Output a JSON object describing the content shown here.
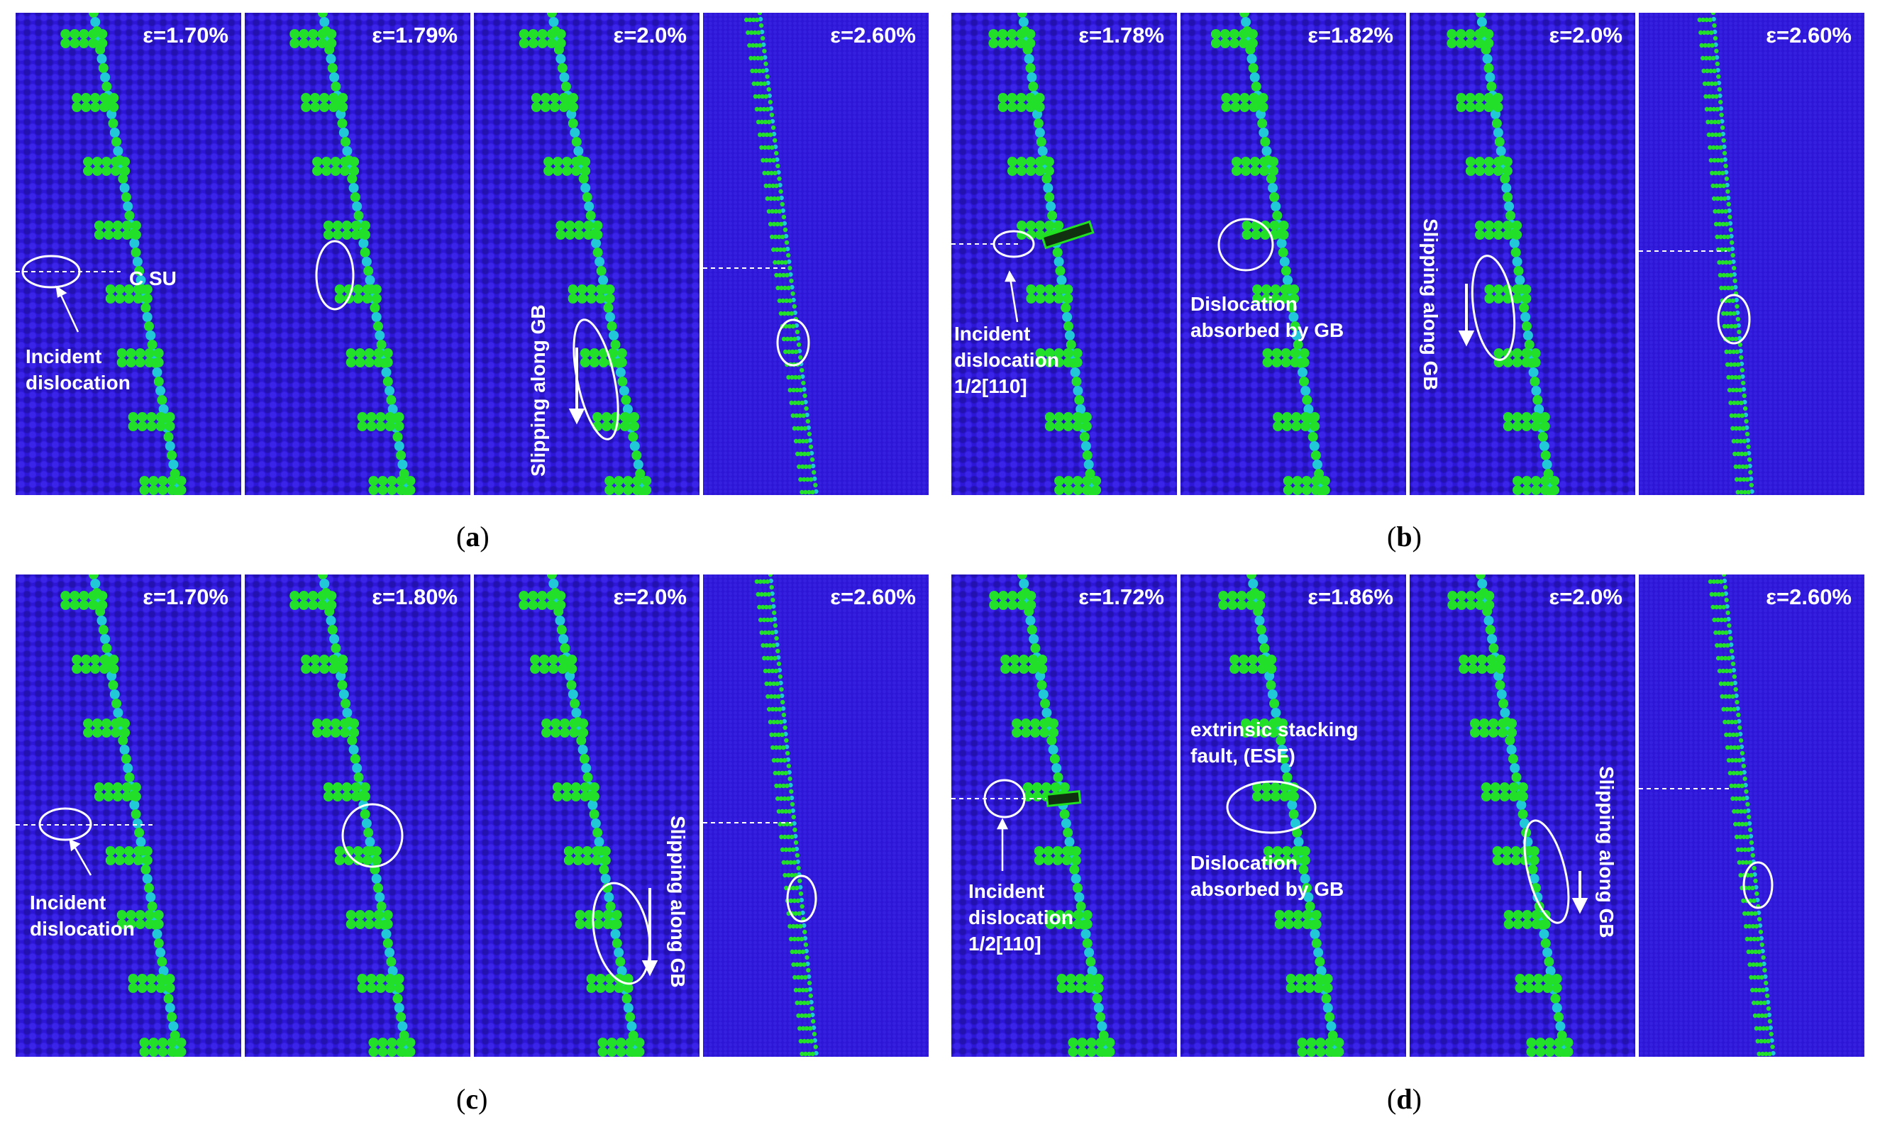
{
  "panels": {
    "a": {
      "label": "a",
      "frames": [
        {
          "strain": "ε=1.70%",
          "annot": "C SU",
          "callout": "Incident\ndislocation"
        },
        {
          "strain": "ε=1.79%"
        },
        {
          "strain": "ε=2.0%",
          "slip": "Slipping along GB"
        },
        {
          "strain": "ε=2.60%"
        }
      ]
    },
    "b": {
      "label": "b",
      "frames": [
        {
          "strain": "ε=1.78%",
          "callout": "Incident\ndislocation\n1/2[110]"
        },
        {
          "strain": "ε=1.82%",
          "callout": "Dislocation\nabsorbed by GB"
        },
        {
          "strain": "ε=2.0%",
          "slip": "Slipping along GB"
        },
        {
          "strain": "ε=2.60%"
        }
      ]
    },
    "c": {
      "label": "c",
      "frames": [
        {
          "strain": "ε=1.70%",
          "callout": "Incident\ndislocation"
        },
        {
          "strain": "ε=1.80%"
        },
        {
          "strain": "ε=2.0%",
          "slip": "Slipping along GB"
        },
        {
          "strain": "ε=2.60%"
        }
      ]
    },
    "d": {
      "label": "d",
      "frames": [
        {
          "strain": "ε=1.72%",
          "callout": "Incident\ndislocation\n1/2[110]"
        },
        {
          "strain": "ε=1.86%",
          "esf": "extrinsic stacking\nfault, (ESF)",
          "callout": "Dislocation\nabsorbed by GB"
        },
        {
          "strain": "ε=2.0%",
          "slip": "Slipping along GB"
        },
        {
          "strain": "ε=2.60%"
        }
      ]
    }
  },
  "colors": {
    "matrix": "#2d16d6",
    "gb_green": "#22e02a",
    "gb_cyan": "#20c8d8",
    "annotation": "#ffffff"
  }
}
